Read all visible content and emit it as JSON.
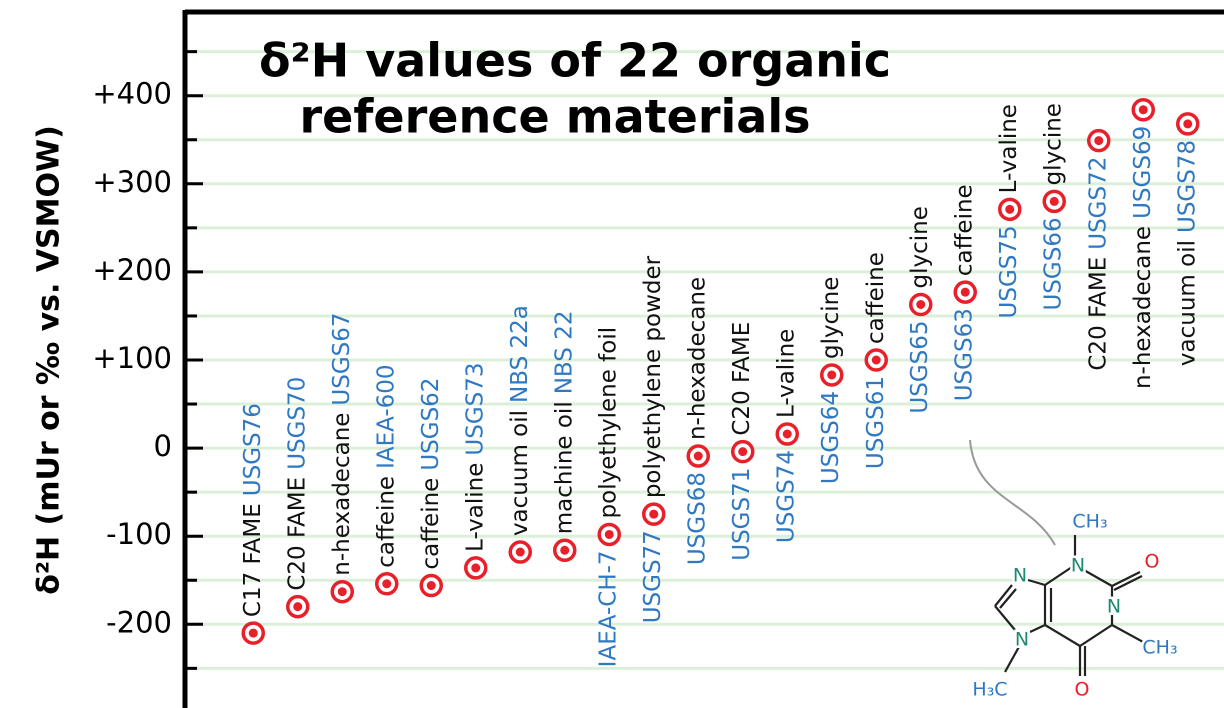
{
  "chart_data": {
    "type": "dot",
    "title": [
      "δ²H values of 22 organic",
      "reference materials"
    ],
    "ylabel": "δ²H  (mUr or ‰ vs. VSMOW)",
    "categories": [
      "C17 FAME",
      "C20 FAME",
      "n-hexadecane",
      "caffeine",
      "caffeine",
      "L-valine",
      "vacuum oil",
      "machine oil",
      "polyethylene foil",
      "polyethylene powder",
      "n-hexadecane",
      "C20 FAME",
      "L-valine",
      "glycine",
      "caffeine",
      "glycine",
      "caffeine",
      "L-valine",
      "glycine",
      "C20 FAME",
      "n-hexadecane",
      "vacuum oil"
    ],
    "codes": [
      "USGS76",
      "USGS70",
      "USGS67",
      "IAEA-600",
      "USGS62",
      "USGS73",
      "NBS 22a",
      "NBS 22",
      "IAEA-CH-7",
      "USGS77",
      "USGS68",
      "USGS71",
      "USGS74",
      "USGS64",
      "USGS61",
      "USGS65",
      "USGS63",
      "USGS75",
      "USGS66",
      "USGS72",
      "USGS69",
      "USGS78"
    ],
    "values": [
      -210,
      -180,
      -163,
      -154,
      -156,
      -136,
      -118,
      -116,
      -98,
      -75,
      -9,
      -4,
      16,
      83,
      100,
      163,
      177,
      271,
      280,
      349,
      384,
      368
    ],
    "label_side": [
      "above",
      "above",
      "above",
      "above",
      "above",
      "above",
      "above",
      "above",
      "split",
      "split",
      "split",
      "split",
      "split",
      "split",
      "split",
      "split",
      "split",
      "split",
      "split",
      "below",
      "below",
      "below"
    ],
    "ylim": [
      -295,
      495
    ],
    "yticks": [
      {
        "value": 400,
        "label": "+400"
      },
      {
        "value": 300,
        "label": "+300"
      },
      {
        "value": 200,
        "label": "+200"
      },
      {
        "value": 100,
        "label": "+100"
      },
      0,
      -100,
      -200
    ],
    "minor_yticks": [
      450,
      350,
      250,
      150,
      50,
      -50,
      -150,
      -250
    ],
    "grid": true,
    "marker_color": "#e8202a",
    "name_color": "#111111",
    "code_color": "#2f78c2",
    "grid_color": "#dcefd8",
    "molecule_atoms": [
      "CH₃",
      "N",
      "O",
      "N",
      "CH₃",
      "O",
      "N",
      "N",
      "H₃C"
    ]
  }
}
